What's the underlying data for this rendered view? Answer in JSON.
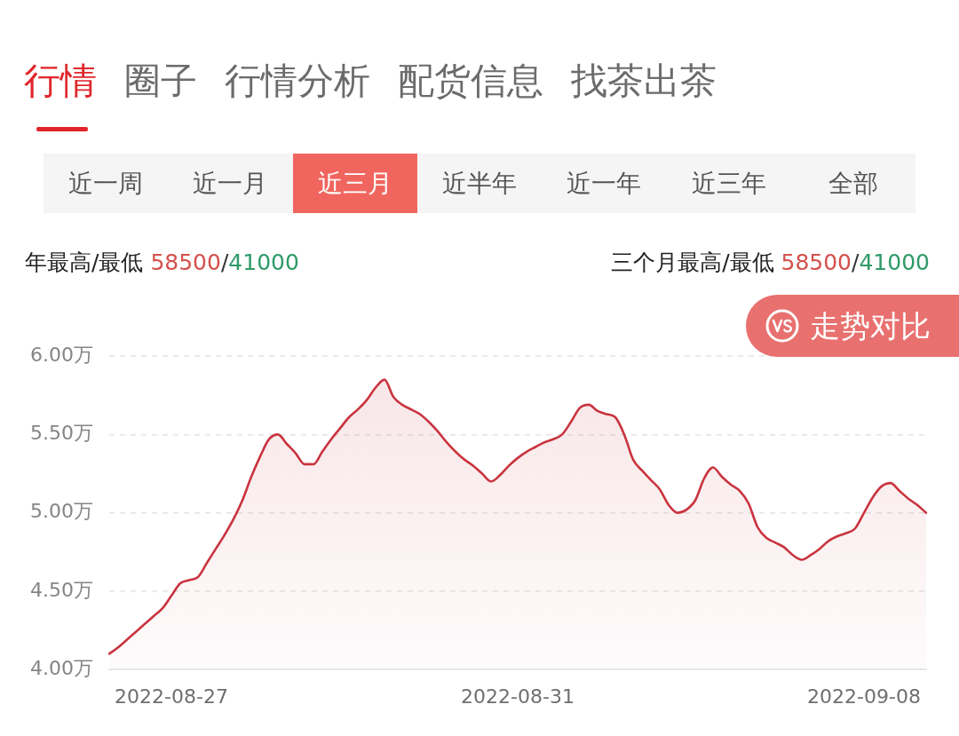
{
  "chart_data": {
    "type": "area",
    "categories": [
      null,
      null,
      null,
      null,
      null,
      null,
      null,
      "2022-08-27",
      null,
      null,
      null,
      null,
      null,
      null,
      null,
      null,
      null,
      null,
      null,
      null,
      null,
      null,
      null,
      null,
      null,
      null,
      null,
      null,
      null,
      null,
      null,
      null,
      null,
      null,
      null,
      null,
      null,
      null,
      null,
      null,
      null,
      null,
      null,
      null,
      null,
      null,
      "2022-08-31",
      null,
      null,
      null,
      null,
      null,
      null,
      null,
      null,
      null,
      null,
      null,
      null,
      null,
      null,
      null,
      null,
      null,
      null,
      null,
      null,
      null,
      null,
      null,
      null,
      null,
      null,
      null,
      null,
      null,
      null,
      null,
      null,
      null,
      null,
      null,
      null,
      null,
      null,
      "2022-09-08",
      null,
      null,
      null,
      null,
      null,
      null,
      null
    ],
    "values": [
      4.1,
      4.14,
      4.19,
      4.24,
      4.29,
      4.34,
      4.39,
      4.47,
      4.55,
      4.57,
      4.59,
      4.68,
      4.77,
      4.86,
      4.96,
      5.08,
      5.23,
      5.36,
      5.47,
      5.5,
      5.44,
      5.38,
      5.31,
      5.31,
      5.39,
      5.47,
      5.54,
      5.61,
      5.66,
      5.72,
      5.8,
      5.85,
      5.74,
      5.69,
      5.66,
      5.63,
      5.58,
      5.52,
      5.45,
      5.39,
      5.34,
      5.3,
      5.25,
      5.2,
      5.24,
      5.3,
      5.35,
      5.39,
      5.42,
      5.45,
      5.47,
      5.5,
      5.58,
      5.67,
      5.69,
      5.65,
      5.63,
      5.61,
      5.5,
      5.34,
      5.27,
      5.21,
      5.15,
      5.05,
      5.0,
      5.02,
      5.08,
      5.22,
      5.29,
      5.23,
      5.18,
      5.14,
      5.06,
      4.91,
      4.84,
      4.81,
      4.78,
      4.73,
      4.7,
      4.73,
      4.77,
      4.82,
      4.85,
      4.87,
      4.9,
      5.0,
      5.1,
      5.17,
      5.19,
      5.14,
      5.09,
      5.05,
      5.0
    ],
    "color": "#c9343f",
    "ylim": [
      4,
      6
    ],
    "yticks": [
      {
        "value": 4,
        "label": "4.00万"
      },
      {
        "value": 4.5,
        "label": "4.50万"
      },
      {
        "value": 5,
        "label": "5.00万"
      },
      {
        "value": 5.5,
        "label": "5.50万"
      },
      {
        "value": 6,
        "label": "6.00万"
      }
    ],
    "grid": "y",
    "legend": false,
    "marker": "none",
    "line_style": "solid",
    "annotations": [
      "行情",
      "圈子",
      "行情分析",
      "配货信息",
      "找茶出茶",
      "近一周",
      "近一月",
      "近三月",
      "近半年",
      "近一年",
      "近三年",
      "全部",
      "年最高/最低 58500/41000",
      "三个月最高/最低 58500/41000",
      "走势对比"
    ]
  }
}
